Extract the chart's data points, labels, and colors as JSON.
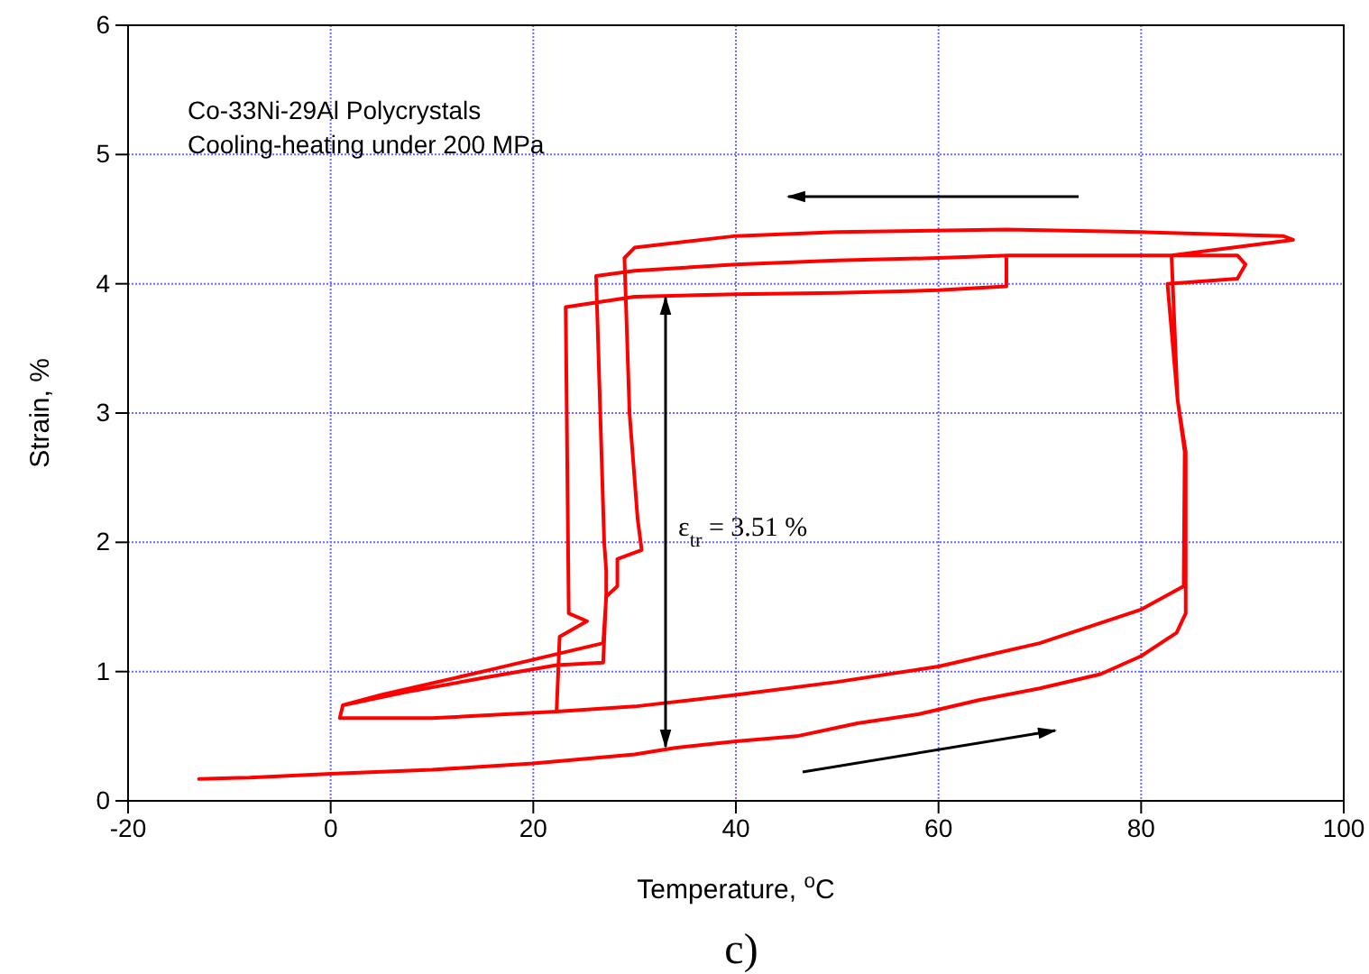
{
  "chart_data": {
    "type": "line",
    "xlabel": "Temperature, $^{o}$C",
    "ylabel": "Strain, %",
    "xlim": [
      -20,
      100
    ],
    "xticks": [
      -20,
      0,
      20,
      40,
      60,
      80,
      100
    ],
    "ylim": [
      0,
      6
    ],
    "yticks": [
      0,
      1,
      2,
      3,
      4,
      5,
      6
    ],
    "grid": true,
    "marker": "none",
    "line_style": "solid",
    "annotations": [
      "Co-33Ni-29Al Polycrystals",
      "Cooling-heating under 200 MPa",
      "ε$_{tr}$ = 3.51 %",
      "c)"
    ],
    "series": [
      {
        "color": "#ff0000",
        "x": [
          -13,
          -8,
          0,
          10,
          20,
          30,
          34,
          40,
          46,
          52,
          58,
          64,
          70,
          76,
          80,
          83.5,
          84.4,
          84.4,
          83.6,
          82.6,
          89.5,
          90.3,
          89.5,
          83,
          75,
          67,
          60,
          50,
          40,
          30,
          26.2,
          27,
          27.2,
          27.2,
          26.9,
          22.3,
          15,
          8,
          1.2,
          0.9,
          10,
          22.3,
          30,
          40,
          50,
          60,
          70,
          80,
          84.2,
          84.3,
          83.6,
          83,
          88,
          95,
          94,
          80,
          66.7,
          50,
          40,
          30,
          29,
          29.5,
          30.3,
          30.7,
          28.3,
          28.3,
          27.2,
          26.9,
          15,
          5,
          1.2,
          0.9,
          10,
          22.3,
          22.6,
          25.3,
          23.5,
          23.2,
          30,
          40,
          50,
          60,
          66.7,
          66.7
        ],
        "values": [
          0.17,
          0.18,
          0.21,
          0.24,
          0.29,
          0.36,
          0.41,
          0.46,
          0.5,
          0.6,
          0.67,
          0.78,
          0.87,
          0.98,
          1.12,
          1.3,
          1.45,
          2.7,
          3.1,
          4.0,
          4.04,
          4.15,
          4.22,
          4.22,
          4.22,
          4.22,
          4.2,
          4.18,
          4.15,
          4.1,
          4.06,
          2.0,
          1.78,
          1.6,
          1.07,
          1.05,
          0.95,
          0.85,
          0.74,
          0.64,
          0.64,
          0.69,
          0.73,
          0.82,
          0.92,
          1.04,
          1.22,
          1.48,
          1.66,
          2.7,
          3.1,
          4.22,
          4.27,
          4.34,
          4.37,
          4.4,
          4.42,
          4.4,
          4.37,
          4.28,
          4.2,
          3.0,
          2.18,
          1.94,
          1.87,
          1.66,
          1.58,
          1.22,
          1.0,
          0.82,
          0.74,
          0.64,
          0.64,
          0.69,
          1.27,
          1.39,
          1.45,
          3.82,
          3.9,
          3.92,
          3.93,
          3.95,
          3.98,
          4.22
        ]
      }
    ]
  }
}
